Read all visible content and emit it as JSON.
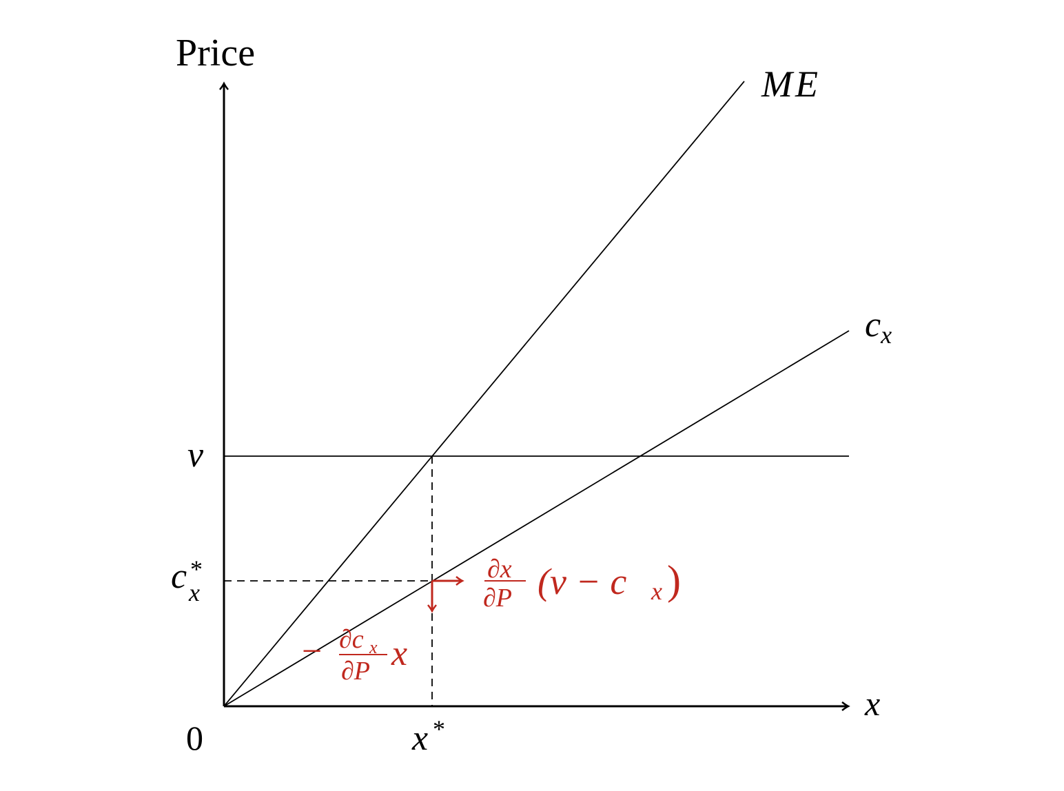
{
  "axes": {
    "y_label": "Price",
    "x_label": "x",
    "origin_label": "0"
  },
  "lines": {
    "me_label": "ME",
    "cx_label": {
      "base": "c",
      "sub": "x"
    },
    "v_label": "v"
  },
  "markers": {
    "cx_star": {
      "base": "c",
      "sup": "*",
      "sub": "x"
    },
    "x_star": {
      "base": "x",
      "sup": "*"
    }
  },
  "annotations": {
    "color": "#c0281e",
    "right_effect": {
      "num": "∂x",
      "den": "∂P",
      "open": "(v − c",
      "sub": "x",
      "close": ")"
    },
    "down_effect": {
      "minus": "−",
      "num": "∂c",
      "num_sub": "x",
      "den": "∂P",
      "tail": "x"
    }
  }
}
